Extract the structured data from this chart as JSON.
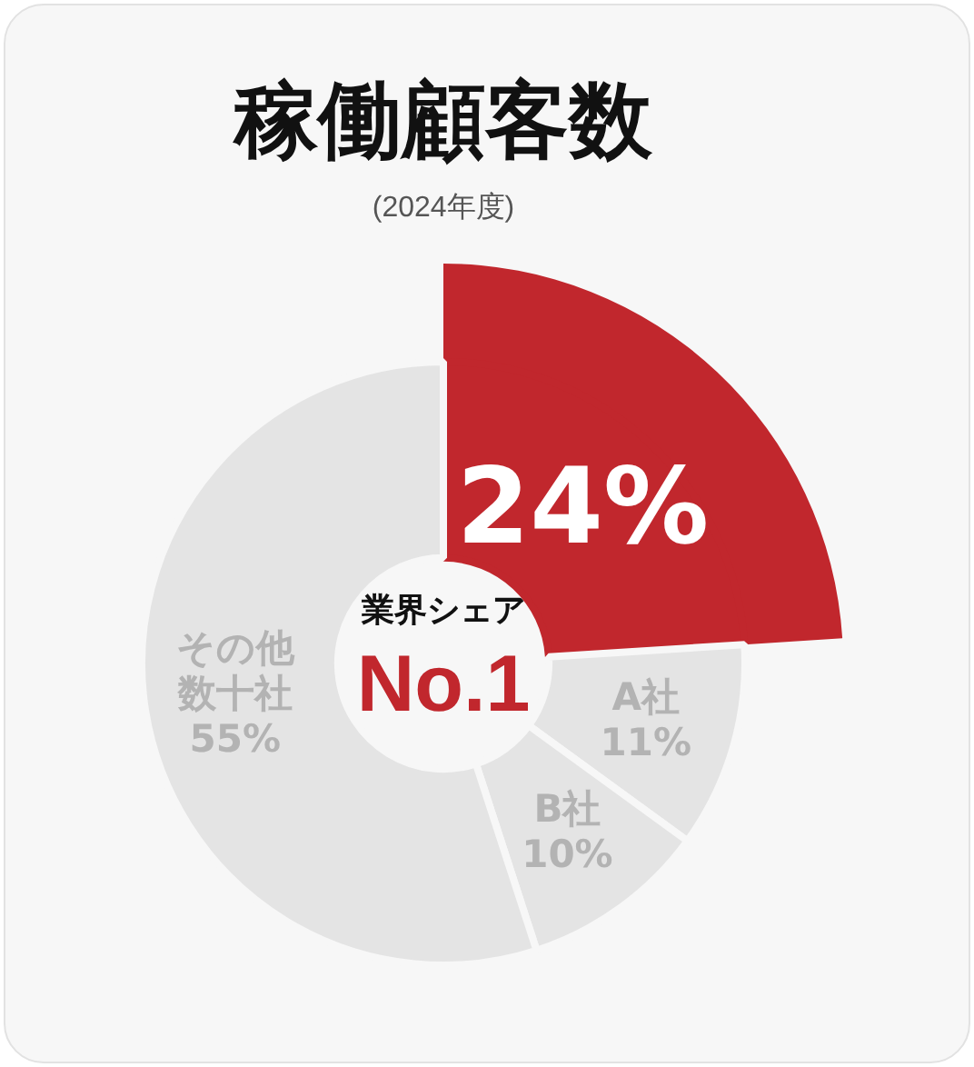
{
  "chart_data": {
    "type": "donut",
    "title": "稼働顧客数",
    "subtitle": "(2024年度)",
    "categories": [
      null,
      "A社",
      "B社",
      "その他数十社"
    ],
    "values": [
      24,
      11,
      10,
      55
    ],
    "colors": [
      "#c1272d",
      "#e4e4e4",
      "#e4e4e4",
      "#e4e4e4"
    ],
    "value_labels": [
      "24%",
      "11%",
      "10%",
      "55%"
    ],
    "annotations": [
      "業界シェア",
      "No.1"
    ]
  }
}
